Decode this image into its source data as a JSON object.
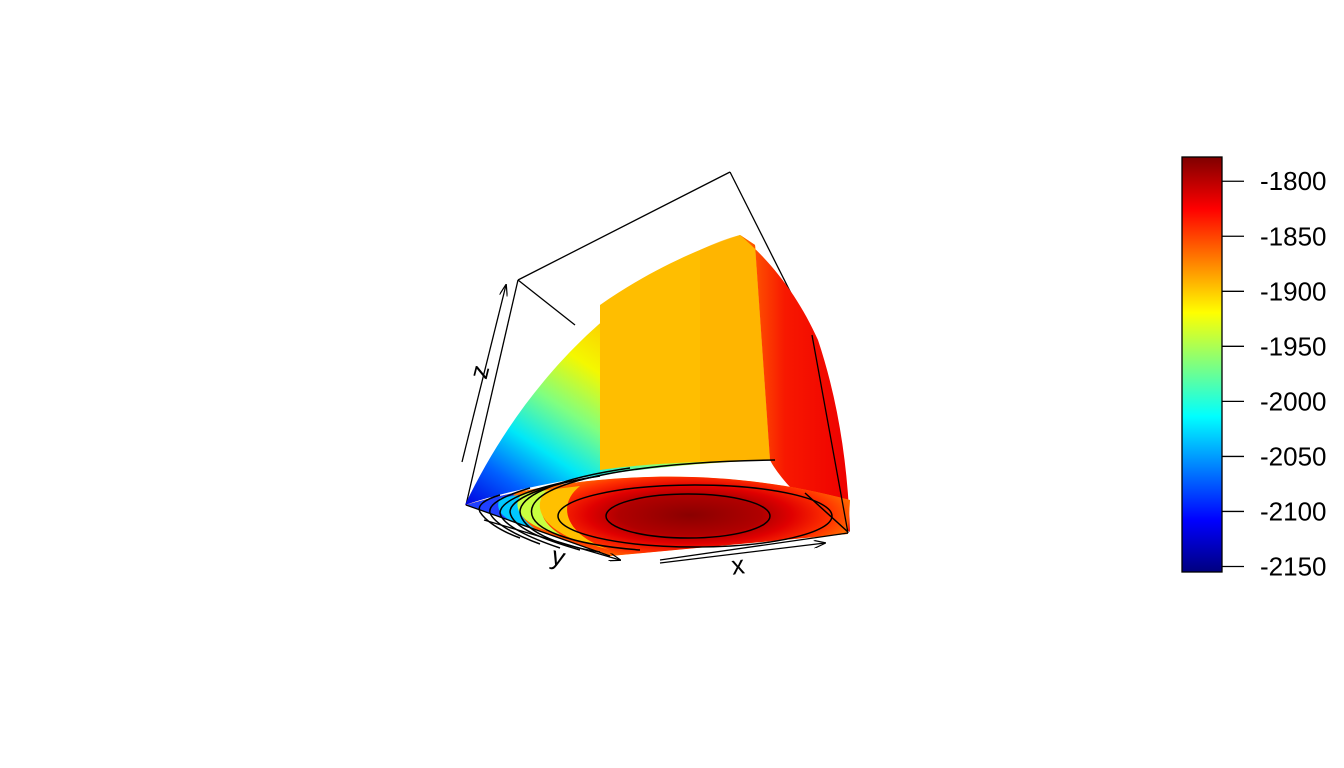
{
  "chart_data": {
    "type": "surface3d",
    "title": "",
    "xlabel": "x",
    "ylabel": "y",
    "zlabel": "z",
    "colorbar": {
      "ticks": [
        -1800,
        -1850,
        -1900,
        -1950,
        -2000,
        -2050,
        -2100,
        -2150
      ],
      "range": [
        -2155,
        -1778
      ],
      "palette": [
        "#00007F",
        "#0000FF",
        "#007FFF",
        "#00FFFF",
        "#7FFF7F",
        "#FFFF00",
        "#FF7F00",
        "#FF0000",
        "#7F0000"
      ]
    },
    "contours": {
      "levels": [
        -1780,
        -1800,
        -1850,
        -1900,
        -1950,
        -2000,
        -2050,
        -2100
      ],
      "color": "#000000"
    },
    "surface": {
      "faces": [
        "left",
        "top",
        "right"
      ],
      "left_face_range": [
        -2150,
        -1900
      ],
      "top_face_value": -1890,
      "right_face_value": -1840,
      "bottom_center_value": -1780
    }
  }
}
